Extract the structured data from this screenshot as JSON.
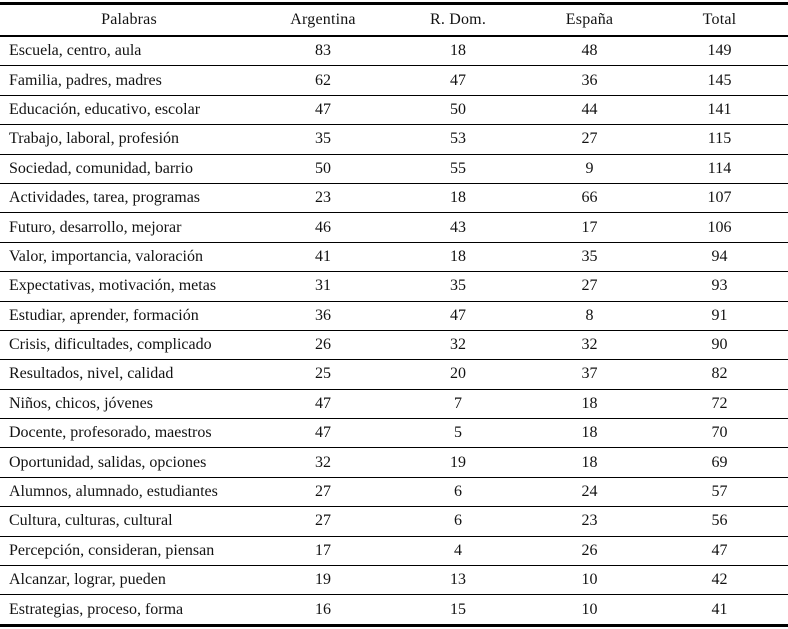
{
  "colors": {
    "background": "#ffffff",
    "text": "#121212",
    "rule": "#000000"
  },
  "table": {
    "columns": [
      "Palabras",
      "Argentina",
      "R. Dom.",
      "España",
      "Total"
    ],
    "rows": [
      [
        "Escuela, centro, aula",
        83,
        18,
        48,
        149
      ],
      [
        "Familia, padres, madres",
        62,
        47,
        36,
        145
      ],
      [
        "Educación, educativo, escolar",
        47,
        50,
        44,
        141
      ],
      [
        "Trabajo, laboral, profesión",
        35,
        53,
        27,
        115
      ],
      [
        "Sociedad, comunidad, barrio",
        50,
        55,
        9,
        114
      ],
      [
        "Actividades, tarea, programas",
        23,
        18,
        66,
        107
      ],
      [
        "Futuro, desarrollo, mejorar",
        46,
        43,
        17,
        106
      ],
      [
        "Valor, importancia, valoración",
        41,
        18,
        35,
        94
      ],
      [
        "Expectativas, motivación, metas",
        31,
        35,
        27,
        93
      ],
      [
        "Estudiar, aprender, formación",
        36,
        47,
        8,
        91
      ],
      [
        "Crisis, dificultades, complicado",
        26,
        32,
        32,
        90
      ],
      [
        "Resultados, nivel, calidad",
        25,
        20,
        37,
        82
      ],
      [
        "Niños, chicos, jóvenes",
        47,
        7,
        18,
        72
      ],
      [
        "Docente, profesorado, maestros",
        47,
        5,
        18,
        70
      ],
      [
        "Oportunidad, salidas, opciones",
        32,
        19,
        18,
        69
      ],
      [
        "Alumnos, alumnado, estudiantes",
        27,
        6,
        24,
        57
      ],
      [
        "Cultura, culturas, cultural",
        27,
        6,
        23,
        56
      ],
      [
        "Percepción, consideran, piensan",
        17,
        4,
        26,
        47
      ],
      [
        "Alcanzar, lograr, pueden",
        19,
        13,
        10,
        42
      ],
      [
        "Estrategias, proceso, forma",
        16,
        15,
        10,
        41
      ]
    ]
  }
}
